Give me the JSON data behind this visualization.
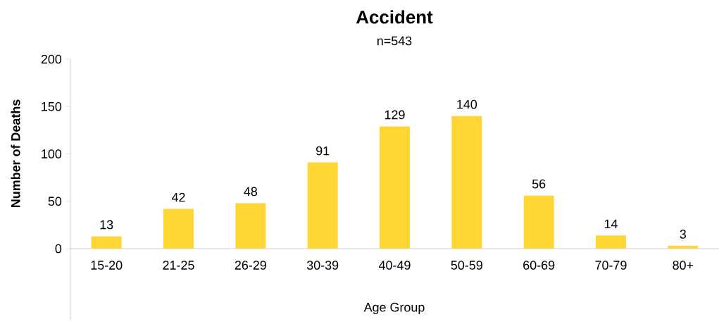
{
  "chart_data": {
    "type": "bar",
    "title": "Accident",
    "subtitle": "n=543",
    "xlabel": "Age Group",
    "ylabel": "Number of Deaths",
    "categories": [
      "15-20",
      "21-25",
      "26-29",
      "30-39",
      "40-49",
      "50-59",
      "60-69",
      "70-79",
      "80+"
    ],
    "values": [
      13,
      42,
      48,
      91,
      129,
      140,
      56,
      14,
      3
    ],
    "color": "#ffd633",
    "ylim": [
      0,
      200
    ],
    "yticks": [
      0,
      50,
      100,
      150,
      200
    ],
    "grid": false,
    "data_labels": true
  }
}
